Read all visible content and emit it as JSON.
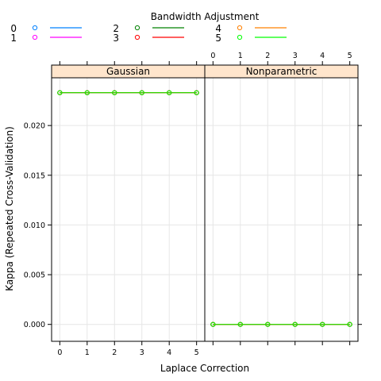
{
  "chart_data": {
    "type": "line",
    "legend": {
      "title": "Bandwidth Adjustment",
      "placement": "top",
      "entries": [
        {
          "label": "0",
          "color": "#0080ff"
        },
        {
          "label": "1",
          "color": "#ff00ff"
        },
        {
          "label": "2",
          "color": "#008000"
        },
        {
          "label": "3",
          "color": "#ff0000"
        },
        {
          "label": "4",
          "color": "#ff8000"
        },
        {
          "label": "5",
          "color": "#00ff00"
        }
      ]
    },
    "xlabel": "Laplace Correction",
    "ylabel": "Kappa (Repeated Cross-Validation)",
    "x": [
      0,
      1,
      2,
      3,
      4,
      5
    ],
    "xticks": [
      "0",
      "1",
      "2",
      "3",
      "4",
      "5"
    ],
    "xlim": [
      -0.3,
      5.3
    ],
    "ylim": [
      -0.0017,
      0.0248
    ],
    "yticks": [
      "0.000",
      "0.005",
      "0.010",
      "0.015",
      "0.020"
    ],
    "grid": true,
    "panels": [
      {
        "name": "Gaussian",
        "series": [
          {
            "name": "0",
            "values": [
              0.0233,
              0.0233,
              0.0233,
              0.0233,
              0.0233,
              0.0233
            ]
          },
          {
            "name": "1",
            "values": [
              0.0233,
              0.0233,
              0.0233,
              0.0233,
              0.0233,
              0.0233
            ]
          },
          {
            "name": "2",
            "values": [
              0.0233,
              0.0233,
              0.0233,
              0.0233,
              0.0233,
              0.0233
            ]
          },
          {
            "name": "3",
            "values": [
              0.0233,
              0.0233,
              0.0233,
              0.0233,
              0.0233,
              0.0233
            ]
          },
          {
            "name": "4",
            "values": [
              0.0233,
              0.0233,
              0.0233,
              0.0233,
              0.0233,
              0.0233
            ]
          },
          {
            "name": "5",
            "values": [
              0.0233,
              0.0233,
              0.0233,
              0.0233,
              0.0233,
              0.0233
            ]
          }
        ]
      },
      {
        "name": "Nonparametric",
        "series": [
          {
            "name": "0",
            "values": [
              0.0,
              0.0,
              0.0,
              0.0,
              0.0,
              0.0
            ]
          },
          {
            "name": "1",
            "values": [
              0.0,
              0.0,
              0.0,
              0.0,
              0.0,
              0.0
            ]
          },
          {
            "name": "2",
            "values": [
              0.0,
              0.0,
              0.0,
              0.0,
              0.0,
              0.0
            ]
          },
          {
            "name": "3",
            "values": [
              0.0,
              0.0,
              0.0,
              0.0,
              0.0,
              0.0
            ]
          },
          {
            "name": "4",
            "values": [
              0.0,
              0.0,
              0.0,
              0.0,
              0.0,
              0.0
            ]
          },
          {
            "name": "5",
            "values": [
              0.0,
              0.0,
              0.0,
              0.0,
              0.0,
              0.0
            ]
          }
        ]
      }
    ],
    "strip_color": "#ffe5cc"
  }
}
